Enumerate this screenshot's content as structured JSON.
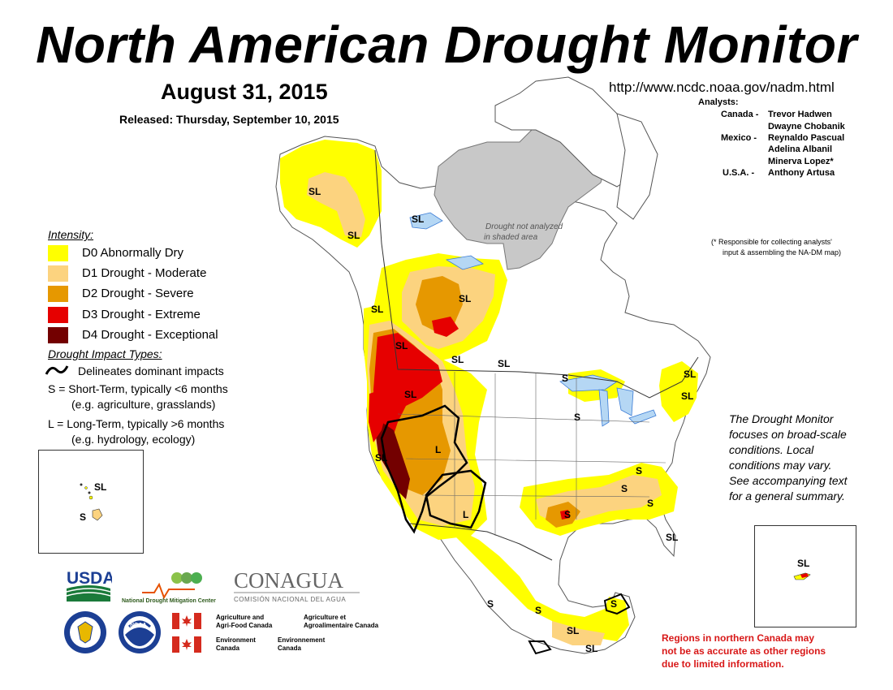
{
  "title": "North American Drought Monitor",
  "date": "August 31, 2015",
  "released": "Released: Thursday, September 10, 2015",
  "url": "http://www.ncdc.noaa.gov/nadm.html",
  "analysts": {
    "heading": "Analysts:",
    "rows": [
      {
        "country": "Canada -",
        "name": "Trevor Hadwen"
      },
      {
        "country": "",
        "name": "Dwayne Chobanik"
      },
      {
        "country": "Mexico -",
        "name": "Reynaldo Pascual"
      },
      {
        "country": "",
        "name": "Adelina Albanil"
      },
      {
        "country": "",
        "name": "Minerva Lopez*"
      },
      {
        "country": "U.S.A. -",
        "name": "Anthony Artusa"
      }
    ],
    "footnote_1": "(* Responsible for collecting analysts'",
    "footnote_2": "input & assembling the NA-DM map)"
  },
  "legend": {
    "intensity_title": "Intensity:",
    "items": [
      {
        "label": "D0 Abnormally Dry",
        "color": "#ffff00"
      },
      {
        "label": "D1 Drought - Moderate",
        "color": "#fcd37f"
      },
      {
        "label": "D2 Drought - Severe",
        "color": "#e69800"
      },
      {
        "label": "D3 Drought - Extreme",
        "color": "#e60000"
      },
      {
        "label": "D4 Drought - Exceptional",
        "color": "#730000"
      }
    ],
    "impact_title": "Drought Impact Types:",
    "impact_line": "Delineates dominant impacts",
    "short_term_1": "S = Short-Term, typically <6 months",
    "short_term_2": "(e.g. agriculture, grasslands)",
    "long_term_1": "L = Long-Term, typically >6 months",
    "long_term_2": "(e.g. hydrology, ecology)"
  },
  "map": {
    "not_analyzed_1": "Drought not analyzed",
    "not_analyzed_2": "in shaded area",
    "labels": {
      "alaska": "SL",
      "alaska_se": "SL",
      "yukon": "SL",
      "nwt": "SL",
      "bc_n": "SL",
      "alberta": "SL",
      "bc_s": "SL",
      "sask": "SL",
      "ontario": "SL",
      "wa": "SL",
      "montana": "SL",
      "nw_us": "SL",
      "ca": "SL",
      "great_basin": "L",
      "southwest": "L",
      "texas": "S",
      "southeast_1": "S",
      "southeast_2": "S",
      "southeast_3": "S",
      "florida": "SL",
      "lakes": "S",
      "midwest": "S",
      "new_england": "SL",
      "maine": "SL",
      "ne_coast": "SL",
      "mexico_1": "S",
      "mexico_2": "S",
      "mexico_3": "SL",
      "yucatan": "S",
      "chiapas": "SL",
      "central_am": "SL"
    }
  },
  "hawaii_inset": {
    "label_sl": "SL",
    "label_s": "S"
  },
  "pr_inset": {
    "label": "SL"
  },
  "note": [
    "The Drought Monitor",
    "focuses on broad-scale",
    "conditions.  Local",
    "conditions may vary.",
    "See accompanying text",
    "for a general summary."
  ],
  "warning": [
    "Regions in northern Canada may",
    "not be as accurate as other regions",
    "due to limited information."
  ],
  "logos": {
    "usda": "USDA",
    "ndmc": "National Drought Mitigation Center",
    "conagua": "CONAGUA",
    "conagua_sub": "COMISIÓN NACIONAL DEL AGUA",
    "noaa": "NOAA",
    "agri_en_1": "Agriculture and",
    "agri_en_2": "Agri-Food Canada",
    "agri_fr_1": "Agriculture et",
    "agri_fr_2": "Agroalimentaire Canada",
    "env_en_1": "Environment",
    "env_en_2": "Canada",
    "env_fr_1": "Environnement",
    "env_fr_2": "Canada"
  }
}
